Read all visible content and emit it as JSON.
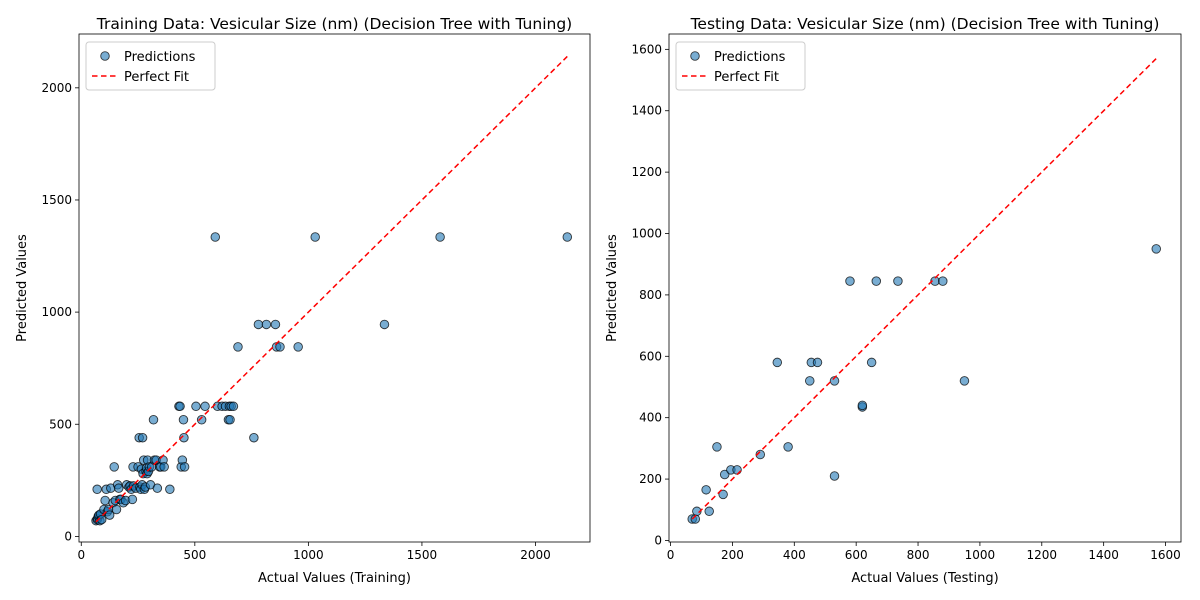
{
  "chart_data": [
    {
      "type": "scatter",
      "title": "Training Data: Vesicular  Size (nm) (Decision Tree with Tuning)",
      "xlabel": "Actual Values (Training)",
      "ylabel": "Predicted Values",
      "xlim": [
        -10,
        2240
      ],
      "ylim": [
        -25,
        2240
      ],
      "xticks": [
        0,
        500,
        1000,
        1500,
        2000
      ],
      "yticks": [
        0,
        500,
        1000,
        1500,
        2000
      ],
      "legend": {
        "placement": "top-left",
        "entries": [
          "Predictions",
          "Perfect Fit"
        ]
      },
      "grid": false,
      "point_color": "#1f77b4",
      "line_color": "#ff0000",
      "perfect_fit": [
        65,
        2140
      ],
      "series": [
        {
          "name": "Predictions",
          "points": [
            [
              65,
              70
            ],
            [
              70,
              75
            ],
            [
              72,
              80
            ],
            [
              75,
              90
            ],
            [
              78,
              95
            ],
            [
              82,
              70
            ],
            [
              85,
              100
            ],
            [
              90,
              75
            ],
            [
              100,
              120
            ],
            [
              105,
              160
            ],
            [
              110,
              210
            ],
            [
              115,
              110
            ],
            [
              120,
              120
            ],
            [
              125,
              95
            ],
            [
              130,
              215
            ],
            [
              140,
              150
            ],
            [
              145,
              310
            ],
            [
              150,
              160
            ],
            [
              155,
              120
            ],
            [
              160,
              230
            ],
            [
              165,
              215
            ],
            [
              170,
              165
            ],
            [
              175,
              165
            ],
            [
              185,
              150
            ],
            [
              195,
              160
            ],
            [
              200,
              230
            ],
            [
              210,
              220
            ],
            [
              215,
              225
            ],
            [
              220,
              210
            ],
            [
              225,
              165
            ],
            [
              228,
              310
            ],
            [
              230,
              225
            ],
            [
              240,
              215
            ],
            [
              250,
              310
            ],
            [
              255,
              440
            ],
            [
              258,
              220
            ],
            [
              262,
              210
            ],
            [
              265,
              300
            ],
            [
              268,
              230
            ],
            [
              270,
              440
            ],
            [
              272,
              280
            ],
            [
              275,
              340
            ],
            [
              278,
              210
            ],
            [
              282,
              220
            ],
            [
              285,
              290
            ],
            [
              288,
              305
            ],
            [
              290,
              280
            ],
            [
              292,
              340
            ],
            [
              296,
              290
            ],
            [
              300,
              310
            ],
            [
              305,
              230
            ],
            [
              310,
              310
            ],
            [
              318,
              520
            ],
            [
              322,
              340
            ],
            [
              330,
              340
            ],
            [
              335,
              215
            ],
            [
              345,
              310
            ],
            [
              350,
              310
            ],
            [
              360,
              340
            ],
            [
              365,
              310
            ],
            [
              390,
              210
            ],
            [
              430,
              580
            ],
            [
              435,
              580
            ],
            [
              440,
              310
            ],
            [
              445,
              340
            ],
            [
              450,
              520
            ],
            [
              452,
              440
            ],
            [
              455,
              310
            ],
            [
              505,
              580
            ],
            [
              530,
              520
            ],
            [
              545,
              580
            ],
            [
              590,
              1335
            ],
            [
              600,
              580
            ],
            [
              620,
              580
            ],
            [
              635,
              580
            ],
            [
              648,
              520
            ],
            [
              652,
              580
            ],
            [
              655,
              520
            ],
            [
              660,
              580
            ],
            [
              670,
              580
            ],
            [
              690,
              845
            ],
            [
              760,
              440
            ],
            [
              780,
              945
            ],
            [
              815,
              945
            ],
            [
              855,
              945
            ],
            [
              860,
              845
            ],
            [
              875,
              845
            ],
            [
              955,
              845
            ],
            [
              1030,
              1335
            ],
            [
              1335,
              945
            ],
            [
              1580,
              1335
            ],
            [
              2140,
              1335
            ],
            [
              70,
              210
            ]
          ]
        }
      ]
    },
    {
      "type": "scatter",
      "title": "Testing Data: Vesicular  Size (nm) (Decision Tree with Tuning)",
      "xlabel": "Actual Values (Testing)",
      "ylabel": "Predicted Values",
      "xlim": [
        -5,
        1650
      ],
      "ylim": [
        -5,
        1650
      ],
      "xticks": [
        0,
        200,
        400,
        600,
        800,
        1000,
        1200,
        1400,
        1600
      ],
      "yticks": [
        0,
        200,
        400,
        600,
        800,
        1000,
        1200,
        1400,
        1600
      ],
      "legend": {
        "placement": "top-left",
        "entries": [
          "Predictions",
          "Perfect Fit"
        ]
      },
      "grid": false,
      "point_color": "#1f77b4",
      "line_color": "#ff0000",
      "perfect_fit": [
        70,
        1570
      ],
      "series": [
        {
          "name": "Predictions",
          "points": [
            [
              70,
              70
            ],
            [
              80,
              70
            ],
            [
              85,
              95
            ],
            [
              115,
              165
            ],
            [
              125,
              95
            ],
            [
              150,
              305
            ],
            [
              170,
              150
            ],
            [
              175,
              215
            ],
            [
              195,
              230
            ],
            [
              215,
              230
            ],
            [
              290,
              280
            ],
            [
              345,
              580
            ],
            [
              380,
              305
            ],
            [
              450,
              520
            ],
            [
              455,
              580
            ],
            [
              475,
              580
            ],
            [
              530,
              520
            ],
            [
              530,
              210
            ],
            [
              580,
              845
            ],
            [
              620,
              435
            ],
            [
              620,
              440
            ],
            [
              650,
              580
            ],
            [
              665,
              845
            ],
            [
              735,
              845
            ],
            [
              855,
              845
            ],
            [
              880,
              845
            ],
            [
              950,
              520
            ],
            [
              1570,
              950
            ]
          ]
        }
      ]
    }
  ]
}
